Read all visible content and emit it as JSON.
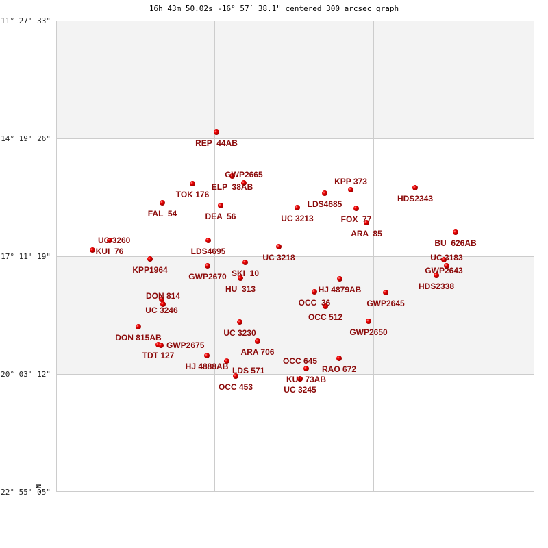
{
  "title": "16h 43m 50.02s -16° 57′ 38.1\" centered 300 arcsec graph",
  "colors": {
    "label": "#8b0a0a",
    "star": "#e00000",
    "band": "#f3f3f3",
    "grid": "#cccccc"
  },
  "chart_data": {
    "type": "scatter",
    "title": "16h 43m 50.02s -16° 57′ 38.1\" centered 300 arcsec graph",
    "x_units": "RA (degrees)",
    "xlim": [
      257.043,
      244.873
    ],
    "ylim": [
      -11.459,
      -22.918
    ],
    "y_ticks": [
      {
        "value": -11.459,
        "label": "-11° 27' 33\""
      },
      {
        "value": -14.324,
        "label": "-14° 19' 26\""
      },
      {
        "value": -17.189,
        "label": "-17° 11' 19\""
      },
      {
        "value": -20.053,
        "label": "-20° 03' 12\""
      },
      {
        "value": -22.918,
        "label": "-22° 55' 05\""
      }
    ],
    "x_grid": [
      253.021,
      248.976
    ],
    "grid": true,
    "north_label": "N",
    "points": [
      {
        "name": "REP  44AB",
        "ra": 252.963,
        "dec": -14.174
      },
      {
        "name": "ELP  38AB",
        "ra": 252.562,
        "dec": -15.24
      },
      {
        "name": "GWP2665",
        "ra": 252.266,
        "dec": -15.407
      },
      {
        "name": "TOK 176",
        "ra": 253.573,
        "dec": -15.423
      },
      {
        "name": "FAL  54",
        "ra": 254.341,
        "dec": -15.89
      },
      {
        "name": "DEA  56",
        "ra": 252.859,
        "dec": -15.956
      },
      {
        "name": "KUI  76",
        "ra": 255.683,
        "dec": -16.806
      },
      {
        "name": "UC 3260",
        "ra": 256.119,
        "dec": -17.039
      },
      {
        "name": "LDS4695",
        "ra": 253.172,
        "dec": -16.806
      },
      {
        "name": "UC 3218",
        "ra": 251.376,
        "dec": -16.956
      },
      {
        "name": "KPP1964",
        "ra": 254.654,
        "dec": -17.256
      },
      {
        "name": "GWP2670",
        "ra": 253.19,
        "dec": -17.422
      },
      {
        "name": "SKI  10",
        "ra": 252.231,
        "dec": -17.339
      },
      {
        "name": "HU  313",
        "ra": 252.353,
        "dec": -17.722
      },
      {
        "name": "LDS4685",
        "ra": 250.208,
        "dec": -15.657
      },
      {
        "name": "KPP 373",
        "ra": 249.546,
        "dec": -15.573
      },
      {
        "name": "UC 3213",
        "ra": 250.906,
        "dec": -16.006
      },
      {
        "name": "FOX  77",
        "ra": 249.406,
        "dec": -16.023
      },
      {
        "name": "ARA  85",
        "ra": 249.145,
        "dec": -16.373
      },
      {
        "name": "HDS2343",
        "ra": 247.907,
        "dec": -15.523
      },
      {
        "name": "BU  626AB",
        "ra": 246.878,
        "dec": -16.606
      },
      {
        "name": "GWP2643",
        "ra": 247.174,
        "dec": -17.272
      },
      {
        "name": "UC 3183",
        "ra": 247.105,
        "dec": -17.422
      },
      {
        "name": "HDS2338",
        "ra": 247.366,
        "dec": -17.655
      },
      {
        "name": "HJ 4879AB",
        "ra": 249.825,
        "dec": -17.739
      },
      {
        "name": "OCC  36",
        "ra": 250.47,
        "dec": -18.055
      },
      {
        "name": "OCC 512",
        "ra": 250.191,
        "dec": -18.405
      },
      {
        "name": "GWP2645",
        "ra": 248.656,
        "dec": -18.072
      },
      {
        "name": "GWP2650",
        "ra": 249.092,
        "dec": -18.771
      },
      {
        "name": "UC 3246",
        "ra": 254.358,
        "dec": -18.238
      },
      {
        "name": "DON 814",
        "ra": 254.323,
        "dec": -18.355
      },
      {
        "name": "DON 815AB",
        "ra": 254.951,
        "dec": -18.905
      },
      {
        "name": "TDT 127",
        "ra": 254.445,
        "dec": -19.338
      },
      {
        "name": "GWP2675",
        "ra": 254.375,
        "dec": -19.354
      },
      {
        "name": "UC 3230",
        "ra": 252.37,
        "dec": -18.788
      },
      {
        "name": "ARA 706",
        "ra": 251.917,
        "dec": -19.254
      },
      {
        "name": "HJ 4888AB",
        "ra": 253.207,
        "dec": -19.604
      },
      {
        "name": "LDS 571",
        "ra": 252.702,
        "dec": -19.738
      },
      {
        "name": "OCC 453",
        "ra": 252.475,
        "dec": -20.104
      },
      {
        "name": "RAO 672",
        "ra": 249.842,
        "dec": -19.671
      },
      {
        "name": "KUI  73AB",
        "ra": 250.679,
        "dec": -19.921
      },
      {
        "name": "UC 3245",
        "ra": 250.836,
        "dec": -20.171
      },
      {
        "name": "OCC 645",
        "ra": 250.836,
        "dec": -20.171
      }
    ]
  }
}
